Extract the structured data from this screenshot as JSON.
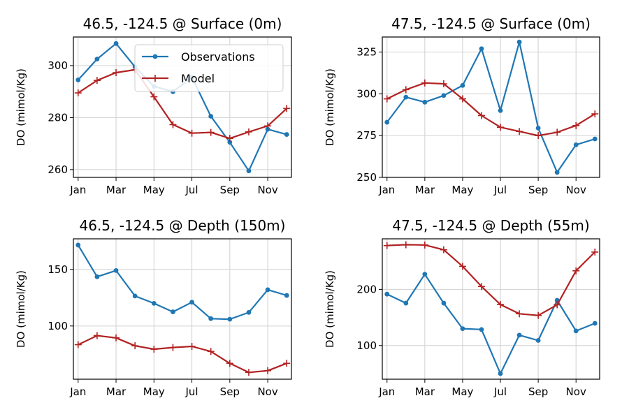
{
  "chart_data": [
    {
      "type": "line",
      "title": "46.5, -124.5 @ Surface (0m)",
      "ylabel": "DO (mimol/Kg)",
      "xlabel": "",
      "x_ticks": [
        "Jan",
        "Mar",
        "May",
        "Jul",
        "Sep",
        "Nov"
      ],
      "x": [
        1,
        2,
        3,
        4,
        5,
        6,
        7,
        8,
        9,
        10,
        11,
        12
      ],
      "xlim": [
        0.75,
        12.25
      ],
      "ylim": [
        257,
        311
      ],
      "y_ticks": [
        260,
        280,
        300
      ],
      "grid": true,
      "legend": {
        "placement": "upper-right",
        "entries": [
          "Observations",
          "Model"
        ]
      },
      "series": [
        {
          "name": "Observations",
          "color": "#1f77b4",
          "marker": "dot",
          "values": [
            294.5,
            302.5,
            308.5,
            299.5,
            292,
            290,
            295.5,
            280.5,
            270.5,
            259.5,
            275.5,
            273.5
          ]
        },
        {
          "name": "Model",
          "color": "#b22222",
          "marker": "plus",
          "values": [
            289.5,
            294.3,
            297.3,
            298.4,
            288.0,
            277.3,
            274.0,
            274.3,
            272.0,
            274.5,
            276.8,
            283.5
          ]
        }
      ]
    },
    {
      "type": "line",
      "title": "47.5, -124.5 @ Surface (0m)",
      "ylabel": "DO (mimol/Kg)",
      "xlabel": "",
      "x_ticks": [
        "Jan",
        "Mar",
        "May",
        "Jul",
        "Sep",
        "Nov"
      ],
      "x": [
        1,
        2,
        3,
        4,
        5,
        6,
        7,
        8,
        9,
        10,
        11,
        12
      ],
      "xlim": [
        0.75,
        12.25
      ],
      "ylim": [
        250,
        334
      ],
      "y_ticks": [
        250,
        275,
        300,
        325
      ],
      "grid": true,
      "series": [
        {
          "name": "Observations",
          "color": "#1f77b4",
          "marker": "dot",
          "values": [
            283,
            298,
            295,
            299,
            305,
            327,
            290,
            331,
            279.5,
            253,
            269.5,
            273
          ]
        },
        {
          "name": "Model",
          "color": "#b22222",
          "marker": "plus",
          "values": [
            297,
            302.5,
            306.5,
            306,
            297,
            287,
            280,
            277.5,
            275,
            277,
            281,
            288
          ]
        }
      ]
    },
    {
      "type": "line",
      "title": "46.5, -124.5 @ Depth (150m)",
      "ylabel": "DO (mimol/Kg)",
      "xlabel": "",
      "x_ticks": [
        "Jan",
        "Mar",
        "May",
        "Jul",
        "Sep",
        "Nov"
      ],
      "x": [
        1,
        2,
        3,
        4,
        5,
        6,
        7,
        8,
        9,
        10,
        11,
        12
      ],
      "xlim": [
        0.75,
        12.25
      ],
      "ylim": [
        53,
        177
      ],
      "y_ticks": [
        100,
        150
      ],
      "grid": true,
      "series": [
        {
          "name": "Observations",
          "color": "#1f77b4",
          "marker": "dot",
          "values": [
            171.5,
            143.5,
            149.0,
            126.5,
            120.0,
            112.5,
            121.0,
            106.5,
            106.0,
            112.0,
            132.0,
            127.0
          ]
        },
        {
          "name": "Model",
          "color": "#b22222",
          "marker": "plus",
          "values": [
            83.5,
            91.5,
            89.5,
            82.5,
            79.5,
            81.0,
            82.0,
            77.5,
            67.0,
            59.0,
            60.5,
            67.0
          ]
        }
      ]
    },
    {
      "type": "line",
      "title": "47.5, -124.5 @ Depth (55m)",
      "ylabel": "DO (mimol/Kg)",
      "xlabel": "",
      "x_ticks": [
        "Jan",
        "Mar",
        "May",
        "Jul",
        "Sep",
        "Nov"
      ],
      "x": [
        1,
        2,
        3,
        4,
        5,
        6,
        7,
        8,
        9,
        10,
        11,
        12
      ],
      "xlim": [
        0.75,
        12.25
      ],
      "ylim": [
        40,
        290
      ],
      "y_ticks": [
        100,
        200
      ],
      "grid": true,
      "series": [
        {
          "name": "Observations",
          "color": "#1f77b4",
          "marker": "dot",
          "values": [
            191.5,
            175.5,
            227.0,
            175.5,
            130.0,
            128.5,
            50.0,
            118.5,
            109.0,
            180.5,
            126.0,
            139.5
          ]
        },
        {
          "name": "Model",
          "color": "#b22222",
          "marker": "plus",
          "values": [
            278.0,
            279.5,
            279.0,
            270.5,
            241.0,
            205.0,
            173.0,
            156.5,
            153.5,
            172.5,
            233.0,
            266.5
          ]
        }
      ]
    }
  ]
}
